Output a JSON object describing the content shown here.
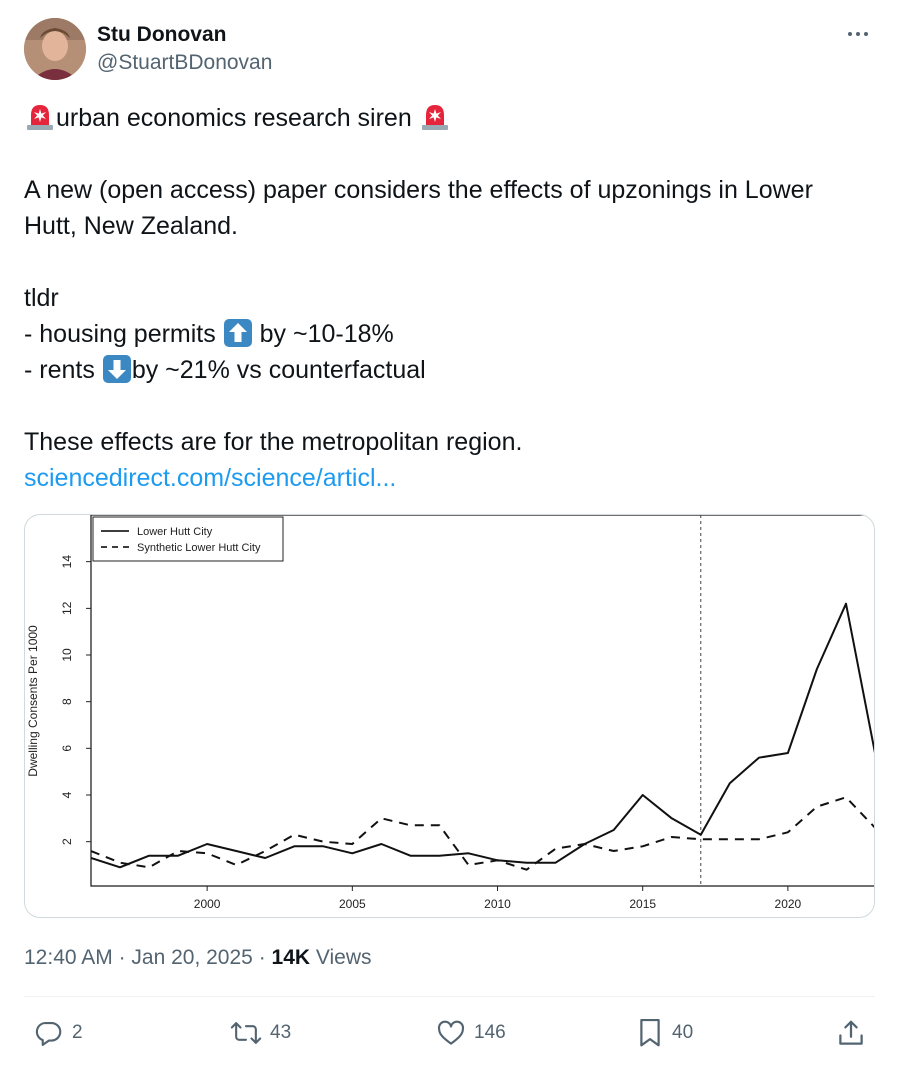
{
  "author": {
    "display_name": "Stu Donovan",
    "handle": "@StuartBDonovan"
  },
  "tweet": {
    "line1_text": "urban economics research siren",
    "line2": "A new (open access) paper considers the effects of upzonings in Lower",
    "line3": "Hutt, New Zealand.",
    "tldr": "tldr",
    "bullet1_before": "- housing permits",
    "bullet1_after": " by ~10-18%",
    "bullet2_before": "- rents",
    "bullet2_after": "by ~21% vs counterfactual",
    "closing": "These effects are for the metropolitan region.",
    "link_text": "sciencedirect.com/science/articl..."
  },
  "chart_data": {
    "type": "line",
    "ylabel": "Dwelling Consents Per 1000",
    "xlabel": "",
    "xlim": [
      1996,
      2023
    ],
    "ylim": [
      0.1,
      16
    ],
    "x_ticks": [
      "2000",
      "2005",
      "2010",
      "2015",
      "2020"
    ],
    "y_ticks": [
      "2",
      "4",
      "6",
      "8",
      "10",
      "12",
      "14"
    ],
    "intervention_year": 2017,
    "legend_position": "top-left",
    "series": [
      {
        "name": "Lower Hutt City",
        "style": "solid",
        "x": [
          1996,
          1997,
          1998,
          1999,
          2000,
          2001,
          2002,
          2003,
          2004,
          2005,
          2006,
          2007,
          2008,
          2009,
          2010,
          2011,
          2012,
          2013,
          2014,
          2015,
          2016,
          2017,
          2018,
          2019,
          2020,
          2021,
          2022,
          2023
        ],
        "values": [
          1.3,
          0.9,
          1.4,
          1.4,
          1.9,
          1.6,
          1.3,
          1.8,
          1.8,
          1.5,
          1.9,
          1.4,
          1.4,
          1.5,
          1.2,
          1.1,
          1.1,
          1.9,
          2.5,
          4.0,
          3.0,
          2.3,
          4.5,
          5.6,
          5.8,
          9.4,
          12.2,
          5.8
        ]
      },
      {
        "name": "Synthetic Lower Hutt City",
        "style": "dashed",
        "x": [
          1996,
          1997,
          1998,
          1999,
          2000,
          2001,
          2002,
          2003,
          2004,
          2005,
          2006,
          2007,
          2008,
          2009,
          2010,
          2011,
          2012,
          2013,
          2014,
          2015,
          2016,
          2017,
          2018,
          2019,
          2020,
          2021,
          2022,
          2023
        ],
        "values": [
          1.6,
          1.1,
          0.9,
          1.6,
          1.5,
          1.0,
          1.6,
          2.3,
          2.0,
          1.9,
          3.0,
          2.7,
          2.7,
          1.0,
          1.2,
          0.8,
          1.7,
          1.9,
          1.6,
          1.8,
          2.2,
          2.1,
          2.1,
          2.1,
          2.4,
          3.5,
          3.9,
          2.6
        ]
      }
    ]
  },
  "meta": {
    "time": "12:40 AM",
    "date": "Jan 20, 2025",
    "views_count": "14K",
    "views_label": "Views"
  },
  "actions": {
    "replies": "2",
    "reposts": "43",
    "likes": "146",
    "bookmarks": "40"
  },
  "colors": {
    "text": "#0f1419",
    "secondary": "#536471",
    "link": "#1d9bf0",
    "border": "#cfd9de",
    "siren": "#e5253b",
    "arrow_key": "#3b88c3"
  },
  "icons": {
    "siren": "police-car-light-icon",
    "up": "up-arrow-icon",
    "down": "down-arrow-icon"
  }
}
